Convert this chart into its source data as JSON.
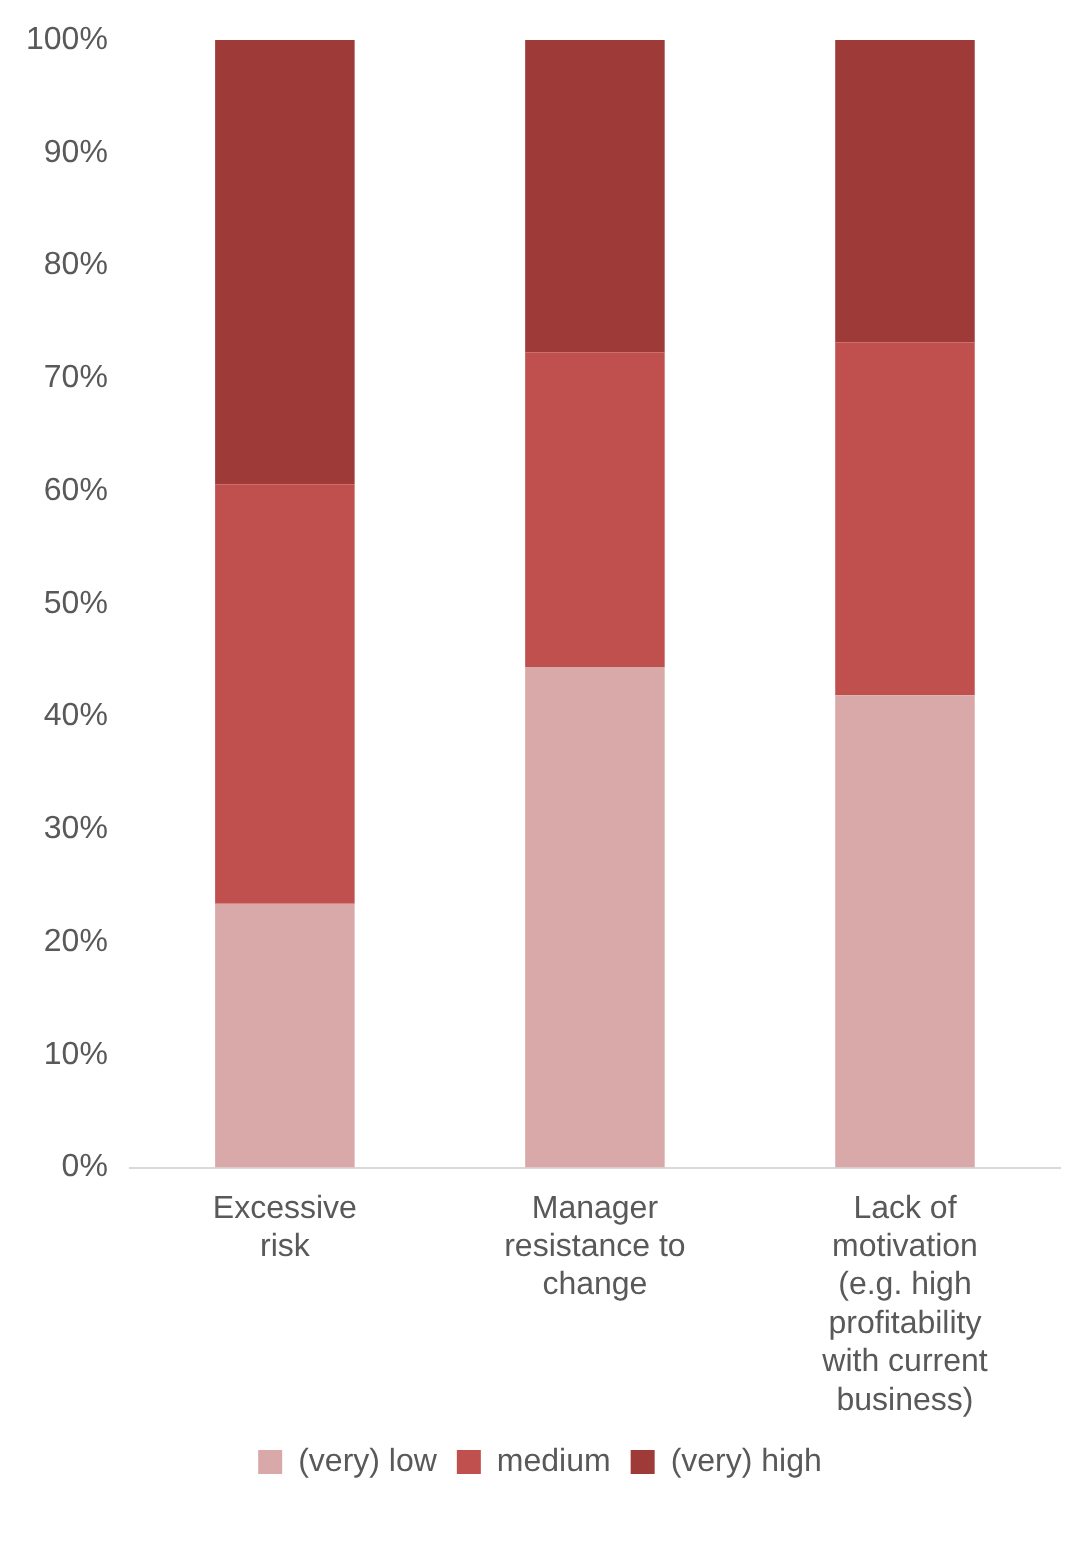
{
  "chart_data": {
    "type": "bar",
    "stacked": true,
    "categories": [
      "Excessive risk",
      "Manager resistance to change",
      "Lack of motivation (e.g. high profitability with current business)"
    ],
    "series": [
      {
        "name": "(very) low",
        "color": "#d9a9a9",
        "values": [
          23.4,
          44.4,
          41.9
        ]
      },
      {
        "name": "medium",
        "color": "#c0504d",
        "values": [
          37.2,
          27.9,
          31.3
        ]
      },
      {
        "name": "(very) high",
        "color": "#9e3b38",
        "values": [
          39.4,
          27.7,
          26.8
        ]
      }
    ],
    "ylim": [
      0,
      100
    ],
    "yticks": [
      {
        "value": 0,
        "label": "0%"
      },
      {
        "value": 10,
        "label": "10%"
      },
      {
        "value": 20,
        "label": "20%"
      },
      {
        "value": 30,
        "label": "30%"
      },
      {
        "value": 40,
        "label": "40%"
      },
      {
        "value": 50,
        "label": "50%"
      },
      {
        "value": 60,
        "label": "60%"
      },
      {
        "value": 70,
        "label": "70%"
      },
      {
        "value": 80,
        "label": "80%"
      },
      {
        "value": 90,
        "label": "90%"
      },
      {
        "value": 100,
        "label": "100%"
      }
    ],
    "grid": false,
    "legend": "bottom"
  }
}
